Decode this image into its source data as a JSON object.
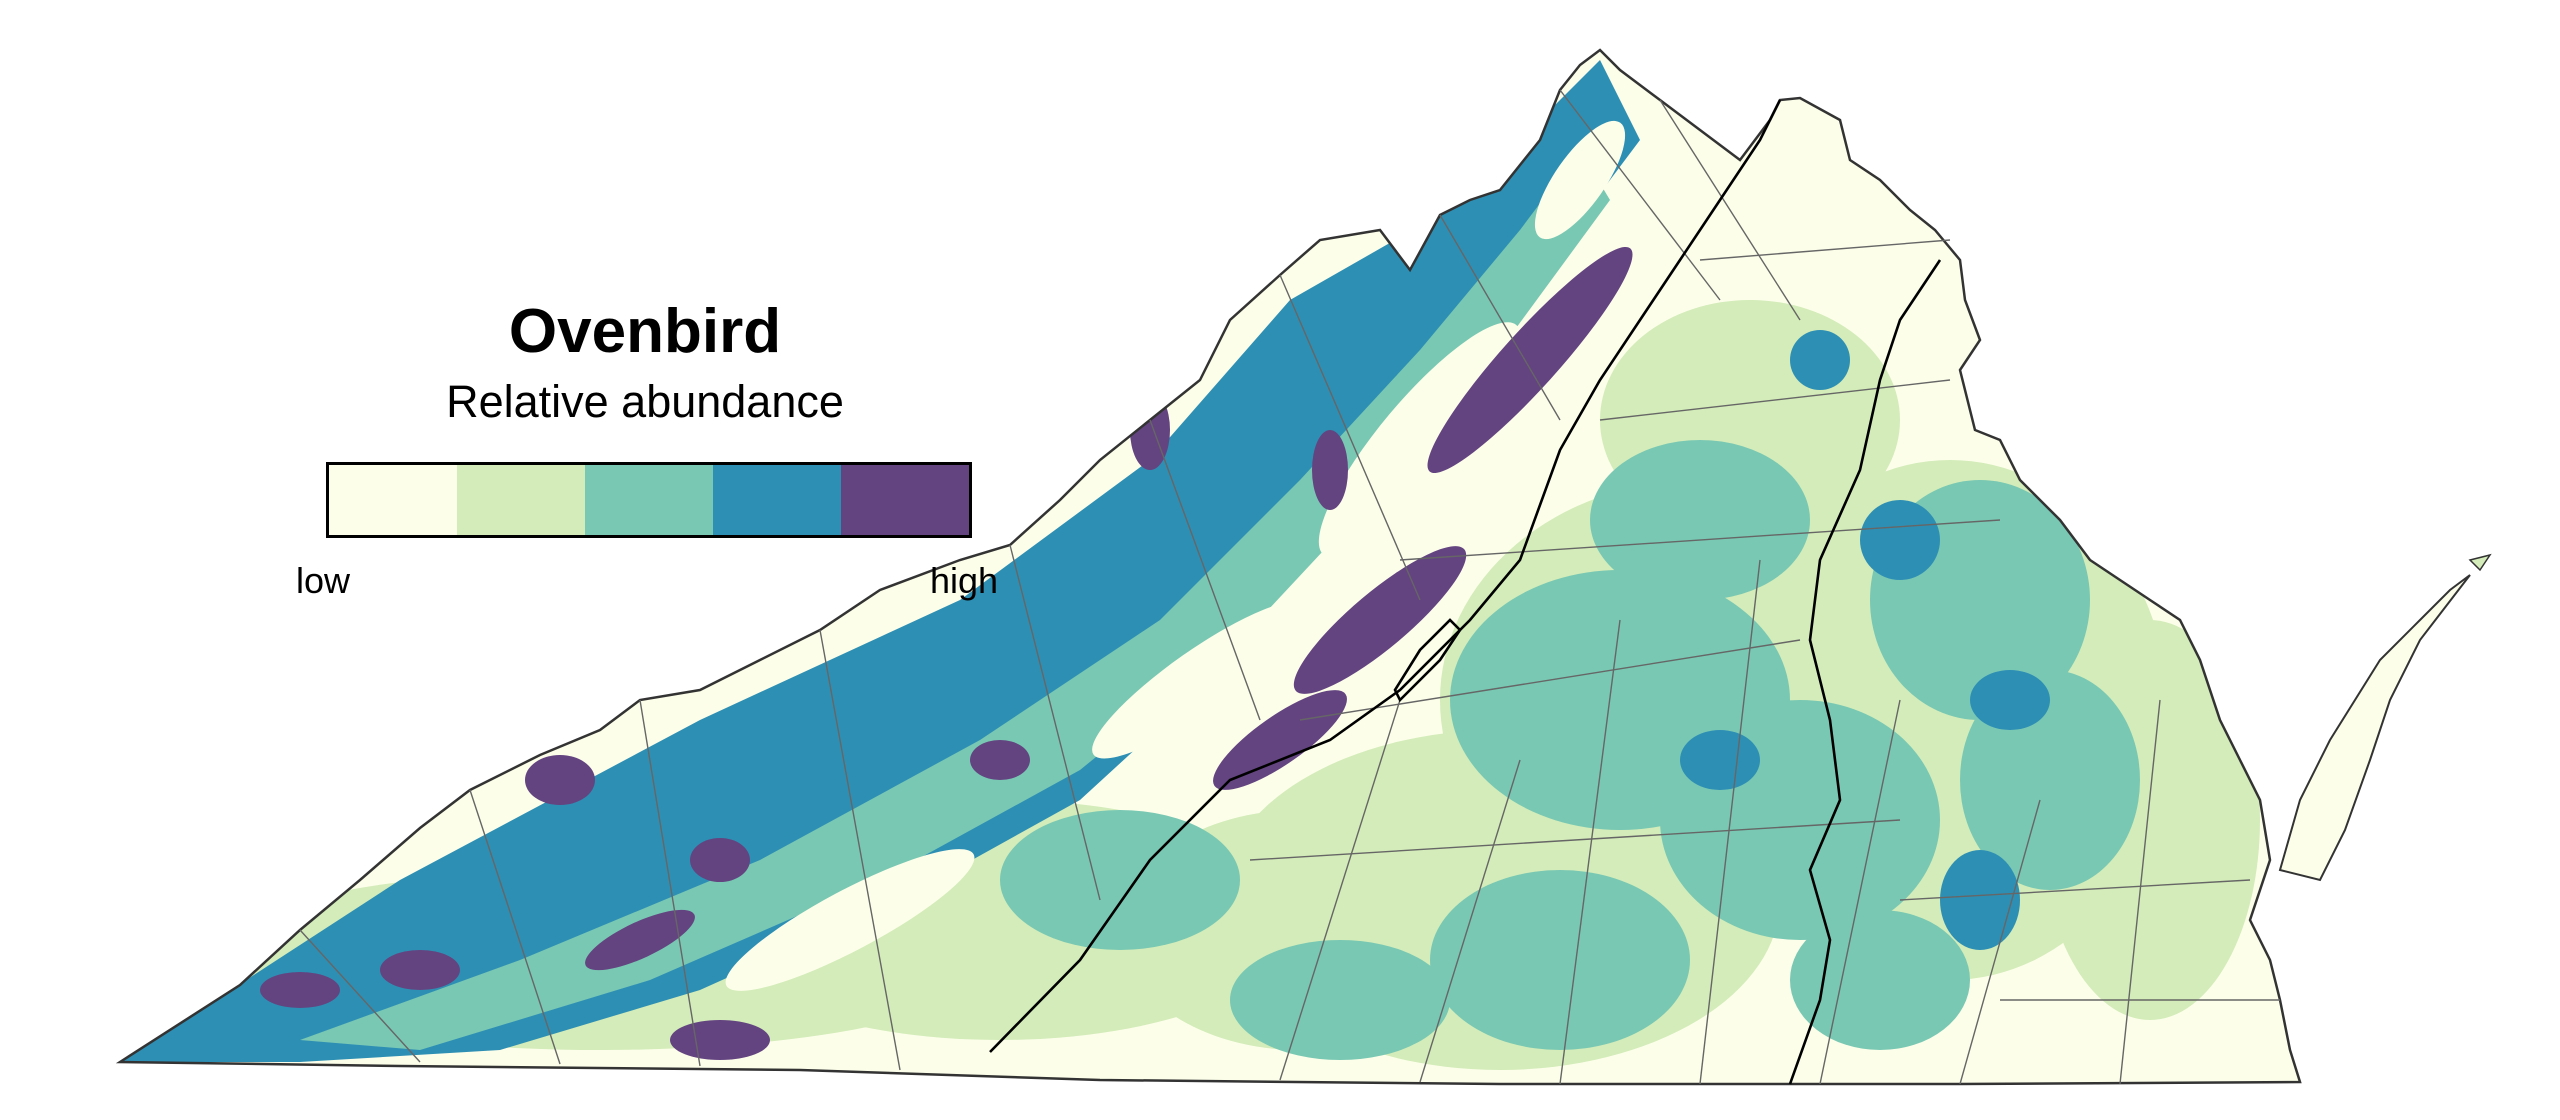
{
  "map": {
    "species": "Ovenbird",
    "metric": "Relative abundance",
    "legend": {
      "low_label": "low",
      "high_label": "high",
      "classes": [
        {
          "level": 1,
          "color": "#fcfee9"
        },
        {
          "level": 2,
          "color": "#d3ecb9"
        },
        {
          "level": 3,
          "color": "#79c8b3"
        },
        {
          "level": 4,
          "color": "#2e8fb4"
        },
        {
          "level": 5,
          "color": "#634480"
        }
      ]
    },
    "colors": {
      "boundary": "#333333",
      "county_lines": "#666666",
      "region_line": "#000000"
    }
  }
}
